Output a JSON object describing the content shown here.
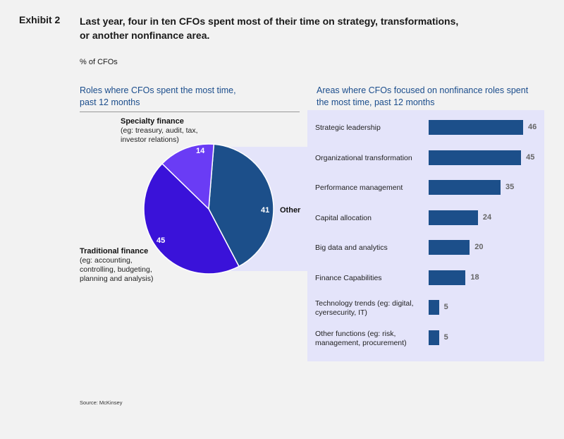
{
  "header": {
    "exhibit": "Exhibit 2",
    "headline_line1": "Last year, four in ten CFOs spent most of their time on strategy, transformations,",
    "headline_line2": "or another nonfinance area.",
    "unit": "% of CFOs"
  },
  "source": "Source: McKinsey",
  "colors": {
    "dark_blue": "#1c4f8a",
    "indigo": "#3a12d9",
    "violet": "#6a3cf5",
    "panel": "#e4e4fa",
    "title_blue": "#1b4d8c"
  },
  "chart_data": [
    {
      "type": "pie",
      "title_line1": "Roles where CFOs spent the most time,",
      "title_line2": "past 12 months",
      "slices": [
        {
          "name": "Other",
          "value": 41,
          "color": "#1c4f8a"
        },
        {
          "name": "Traditional finance",
          "desc_line1": "(eg: accounting,",
          "desc_line2": "controlling, budgeting,",
          "desc_line3": "planning and analysis)",
          "value": 45,
          "color": "#3a12d9"
        },
        {
          "name": "Specialty finance",
          "desc_line1": "(eg: treasury, audit, tax,",
          "desc_line2": "investor relations)",
          "value": 14,
          "color": "#6a3cf5"
        }
      ]
    },
    {
      "type": "bar",
      "orientation": "horizontal",
      "title_line1": "Areas where CFOs focused on nonfinance roles spent",
      "title_line2": "the most time, past 12 months",
      "xlim": [
        0,
        50
      ],
      "bars": [
        {
          "line1": "Strategic leadership",
          "line2": "",
          "value": 46
        },
        {
          "line1": "Organizational transformation",
          "line2": "",
          "value": 45
        },
        {
          "line1": "Performance management",
          "line2": "",
          "value": 35
        },
        {
          "line1": "Capital allocation",
          "line2": "",
          "value": 24
        },
        {
          "line1": "Big data and analytics",
          "line2": "",
          "value": 20
        },
        {
          "line1": "Finance Capabilities",
          "line2": "",
          "value": 18
        },
        {
          "line1": "Technology trends (eg: digital,",
          "line2": "cyersecurity, IT)",
          "value": 5
        },
        {
          "line1": "Other functions (eg: risk,",
          "line2": "management, procurement)",
          "value": 5
        }
      ]
    }
  ]
}
